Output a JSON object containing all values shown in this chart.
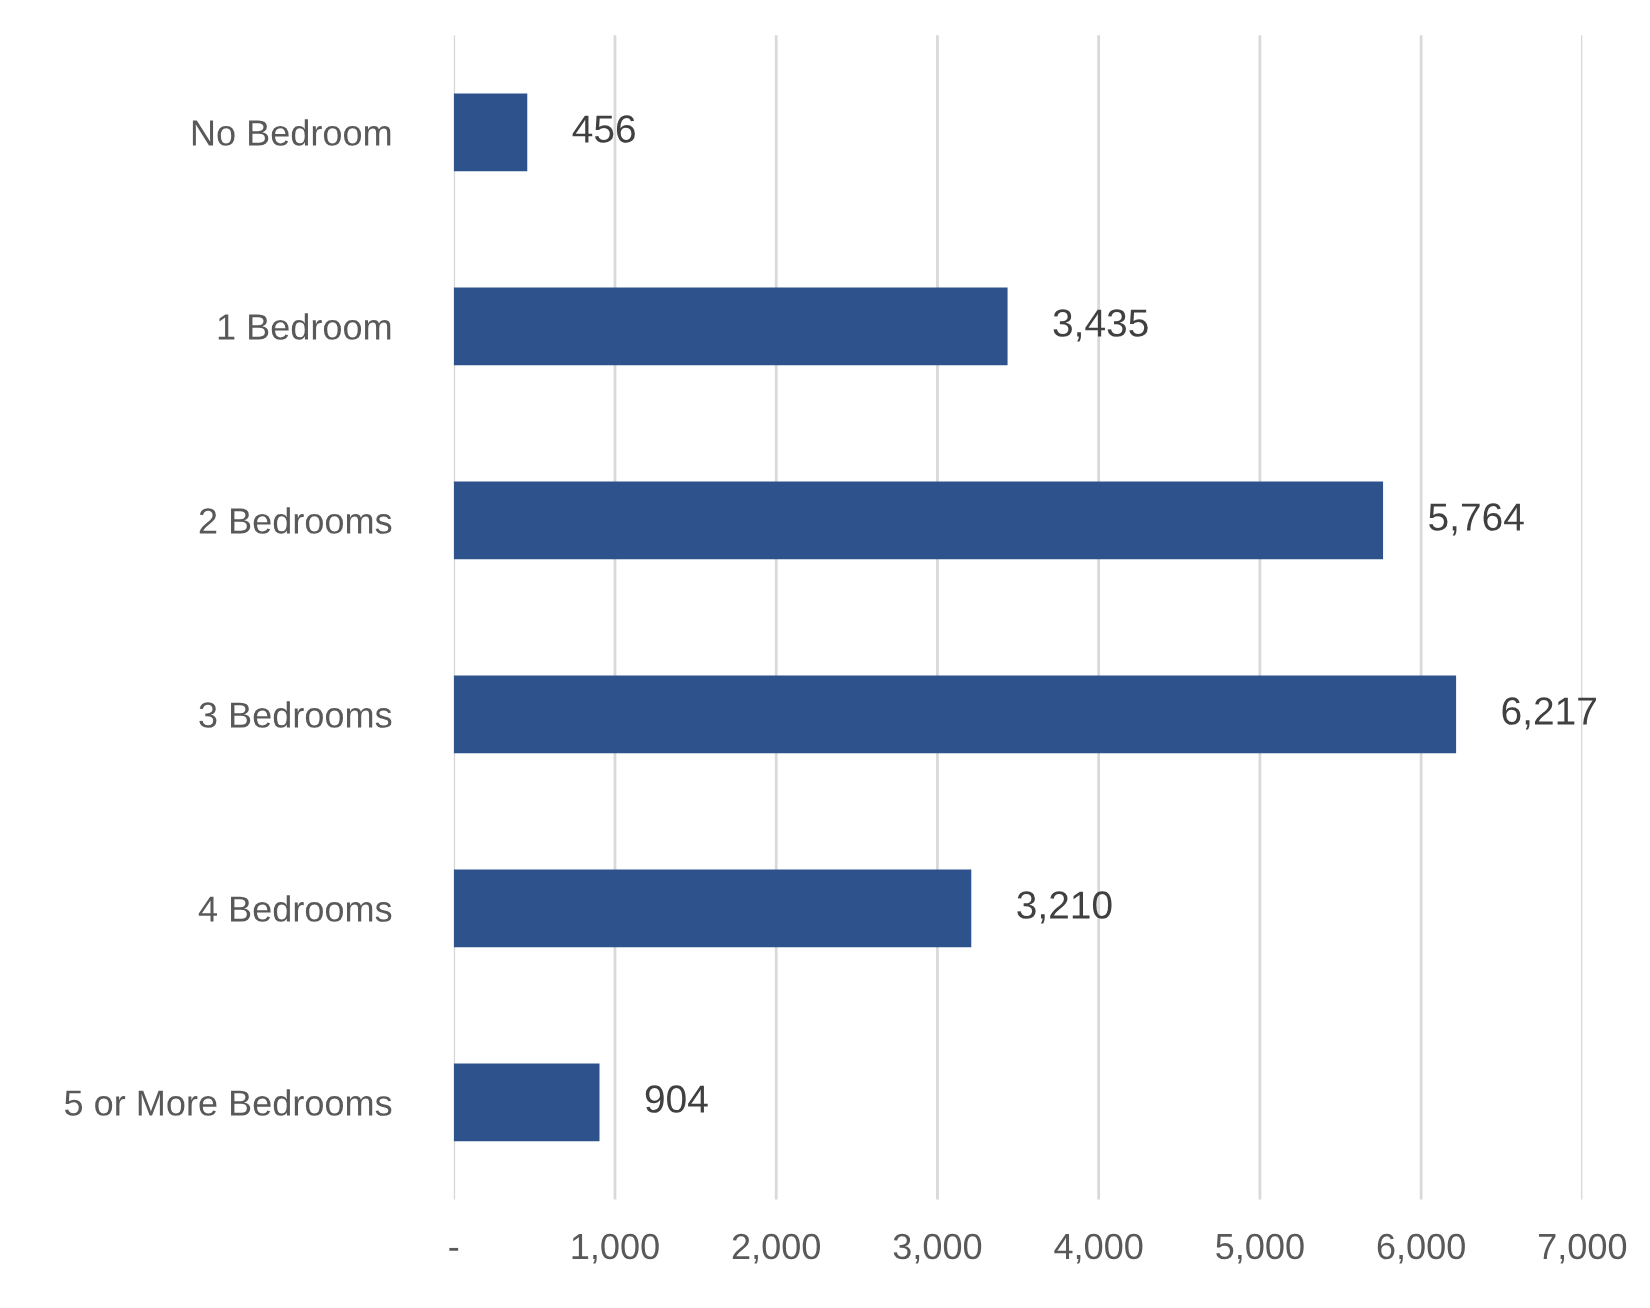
{
  "chart_data": {
    "type": "bar",
    "orientation": "horizontal",
    "categories": [
      "No Bedroom",
      "1 Bedroom",
      "2 Bedrooms",
      "3 Bedrooms",
      "4 Bedrooms",
      "5 or More Bedrooms"
    ],
    "values": [
      456,
      3435,
      5764,
      6217,
      3210,
      904
    ],
    "value_labels": [
      "456",
      "3,435",
      "5,764",
      "6,217",
      "3,210",
      "904"
    ],
    "color": "#2e528c",
    "xlim": [
      0,
      7000
    ],
    "xticks": [
      {
        "value": 0,
        "label": "-"
      },
      {
        "value": 1000,
        "label": "1,000"
      },
      {
        "value": 2000,
        "label": "2,000"
      },
      {
        "value": 3000,
        "label": "3,000"
      },
      {
        "value": 4000,
        "label": "4,000"
      },
      {
        "value": 5000,
        "label": "5,000"
      },
      {
        "value": 6000,
        "label": "6,000"
      },
      {
        "value": 7000,
        "label": "7,000"
      }
    ],
    "grid": "x",
    "legend": false
  }
}
